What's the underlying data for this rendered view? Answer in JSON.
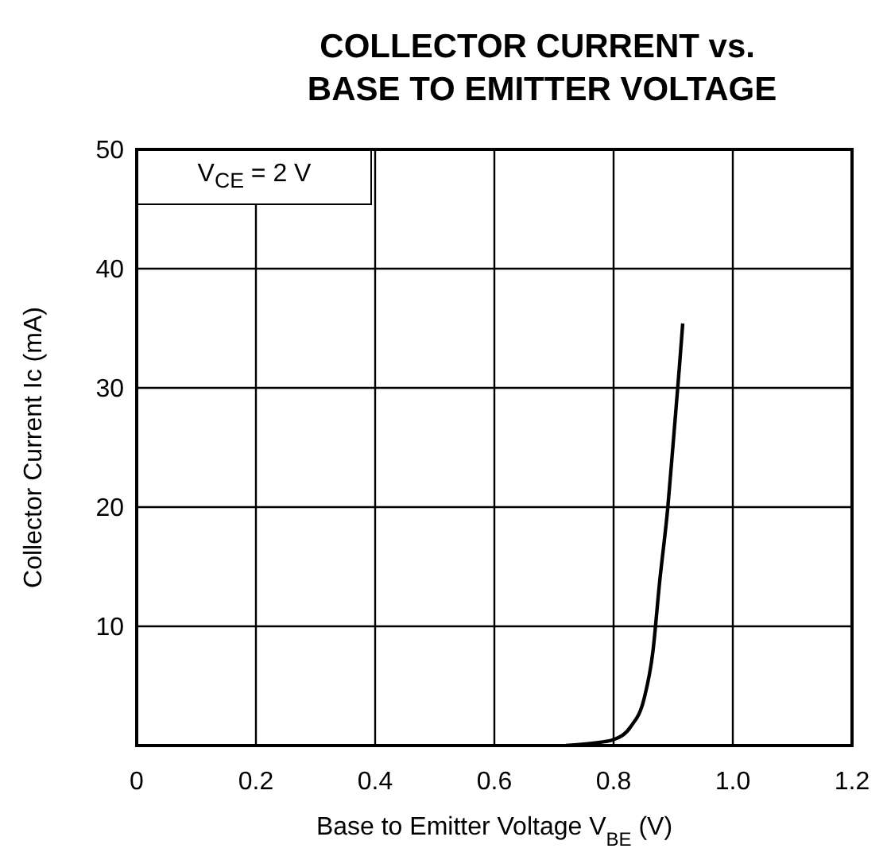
{
  "chart_data": {
    "type": "line",
    "title": "COLLECTOR CURRENT vs.\nBASE TO EMITTER VOLTAGE",
    "xlabel": "Base to Emitter Voltage  V$_{BE}$ (V)",
    "ylabel": "Collector Current Ic (mA)",
    "annotations": [
      "V$_{CE}$ = 2 V"
    ],
    "series": [
      {
        "color": "#000000",
        "x": [
          0.72,
          0.766,
          0.8,
          0.829,
          0.851,
          0.866,
          0.877,
          0.891,
          0.901,
          0.91,
          0.916
        ],
        "values": [
          0,
          0.2,
          0.5,
          1.6,
          3.9,
          7.9,
          13.6,
          20,
          26,
          31.5,
          35.4
        ]
      }
    ],
    "xlim": [
      0,
      1.2
    ],
    "xticks": [
      0,
      0.2,
      0.4,
      0.6,
      0.8,
      {
        "value": 1,
        "label": "1.0"
      },
      1.2
    ],
    "ylim": [
      0,
      50
    ],
    "yticks": [
      {
        "value": 0,
        "label": null
      },
      10,
      20,
      30,
      40,
      50
    ],
    "grid": true,
    "marker": "none",
    "line_style": "solid"
  }
}
